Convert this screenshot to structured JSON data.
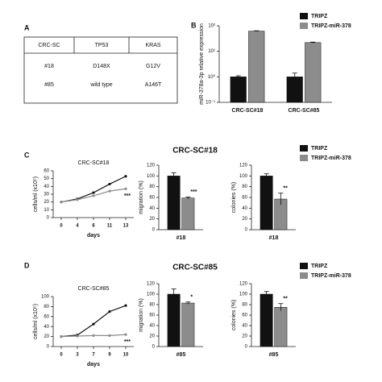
{
  "panels": [
    "A",
    "B",
    "C",
    "D"
  ],
  "table": {
    "header": [
      "CRC-SC",
      "TP53",
      "KRAS"
    ],
    "rows": [
      [
        "#18",
        "D148X",
        "G12V"
      ],
      [
        "#85",
        "wild type",
        "A146T"
      ]
    ]
  },
  "group_titles": [
    "CRC-SC#18",
    "CRC-SC#85"
  ],
  "chart_data": [
    {
      "type": "bar",
      "y_label": "miR-378a-3p relative expression",
      "categories": [
        "CRC-SC#18",
        "CRC-SC#85"
      ],
      "series": [
        {
          "name": "TRIPZ",
          "color": "#111111",
          "values": [
            1,
            1
          ],
          "errors": [
            0.1,
            0.4
          ]
        },
        {
          "name": "TRIPZ-miR-378",
          "color": "#8c8c8c",
          "values": [
            62,
            22
          ],
          "errors": [
            2,
            1
          ]
        }
      ],
      "log_scale": true,
      "ylim": [
        0.1,
        100
      ],
      "yticks": [
        {
          "value": 0.1,
          "label": "10⁻¹"
        },
        {
          "value": 1,
          "label": "10⁰"
        },
        {
          "value": 10,
          "label": "10¹"
        },
        {
          "value": 100,
          "label": "10²"
        }
      ],
      "legend": "top-right"
    },
    {
      "type": "line",
      "title": "CRC-SC#18",
      "x_label": "days",
      "y_label": "cells/ml (x10⁵)",
      "categories": [
        "0",
        "4",
        "6",
        "11",
        "13"
      ],
      "series": [
        {
          "name": "TRIPZ",
          "color": "#111111",
          "values": [
            20,
            24,
            32,
            43,
            53
          ]
        },
        {
          "name": "TRIPZ-miR-378",
          "color": "#8c8c8c",
          "values": [
            20,
            23,
            28,
            34,
            37
          ]
        }
      ],
      "ylim": [
        0,
        60
      ],
      "yticks": [
        0,
        10,
        20,
        30,
        40,
        50,
        60
      ],
      "annotation": "***"
    },
    {
      "type": "bar",
      "y_label": "migration (%)",
      "categories": [
        "#18"
      ],
      "series": [
        {
          "name": "TRIPZ",
          "color": "#111111",
          "values": [
            100
          ],
          "errors": [
            6
          ]
        },
        {
          "name": "TRIPZ-miR-378",
          "color": "#8c8c8c",
          "values": [
            59
          ],
          "errors": [
            2
          ]
        }
      ],
      "ylim": [
        0,
        120
      ],
      "yticks": [
        0,
        20,
        40,
        60,
        80,
        100,
        120
      ],
      "annotation": "***"
    },
    {
      "type": "bar",
      "y_label": "colonies (%)",
      "categories": [
        "#18"
      ],
      "series": [
        {
          "name": "TRIPZ",
          "color": "#111111",
          "values": [
            100
          ],
          "errors": [
            4
          ]
        },
        {
          "name": "TRIPZ-miR-378",
          "color": "#8c8c8c",
          "values": [
            57
          ],
          "errors": [
            11
          ]
        }
      ],
      "ylim": [
        0,
        120
      ],
      "yticks": [
        0,
        20,
        40,
        60,
        80,
        100,
        120
      ],
      "annotation": "**",
      "legend": "top-right"
    },
    {
      "type": "line",
      "title": "CRC-SC#85",
      "x_label": "days",
      "y_label": "cells/ml (x10⁵)",
      "categories": [
        "0",
        "3",
        "7",
        "9",
        "10"
      ],
      "series": [
        {
          "name": "TRIPZ",
          "color": "#111111",
          "values": [
            20,
            23,
            45,
            70,
            82
          ]
        },
        {
          "name": "TRIPZ-miR-378",
          "color": "#8c8c8c",
          "values": [
            20,
            21,
            22,
            22,
            24
          ]
        }
      ],
      "ylim": [
        0,
        100
      ],
      "yticks": [
        0,
        20,
        40,
        60,
        80,
        100
      ],
      "annotation": "***"
    },
    {
      "type": "bar",
      "y_label": "migration (%)",
      "categories": [
        "#85"
      ],
      "series": [
        {
          "name": "TRIPZ",
          "color": "#111111",
          "values": [
            100
          ],
          "errors": [
            10
          ]
        },
        {
          "name": "TRIPZ-miR-378",
          "color": "#8c8c8c",
          "values": [
            83
          ],
          "errors": [
            2
          ]
        }
      ],
      "ylim": [
        0,
        120
      ],
      "yticks": [
        0,
        20,
        40,
        60,
        80,
        100,
        120
      ],
      "annotation": "*"
    },
    {
      "type": "bar",
      "y_label": "colonies (%)",
      "categories": [
        "#85"
      ],
      "series": [
        {
          "name": "TRIPZ",
          "color": "#111111",
          "values": [
            100
          ],
          "errors": [
            5
          ]
        },
        {
          "name": "TRIPZ-miR-378",
          "color": "#8c8c8c",
          "values": [
            75
          ],
          "errors": [
            7
          ]
        }
      ],
      "ylim": [
        0,
        120
      ],
      "yticks": [
        0,
        20,
        40,
        60,
        80,
        100,
        120
      ],
      "annotation": "**",
      "legend": "top-right"
    }
  ]
}
